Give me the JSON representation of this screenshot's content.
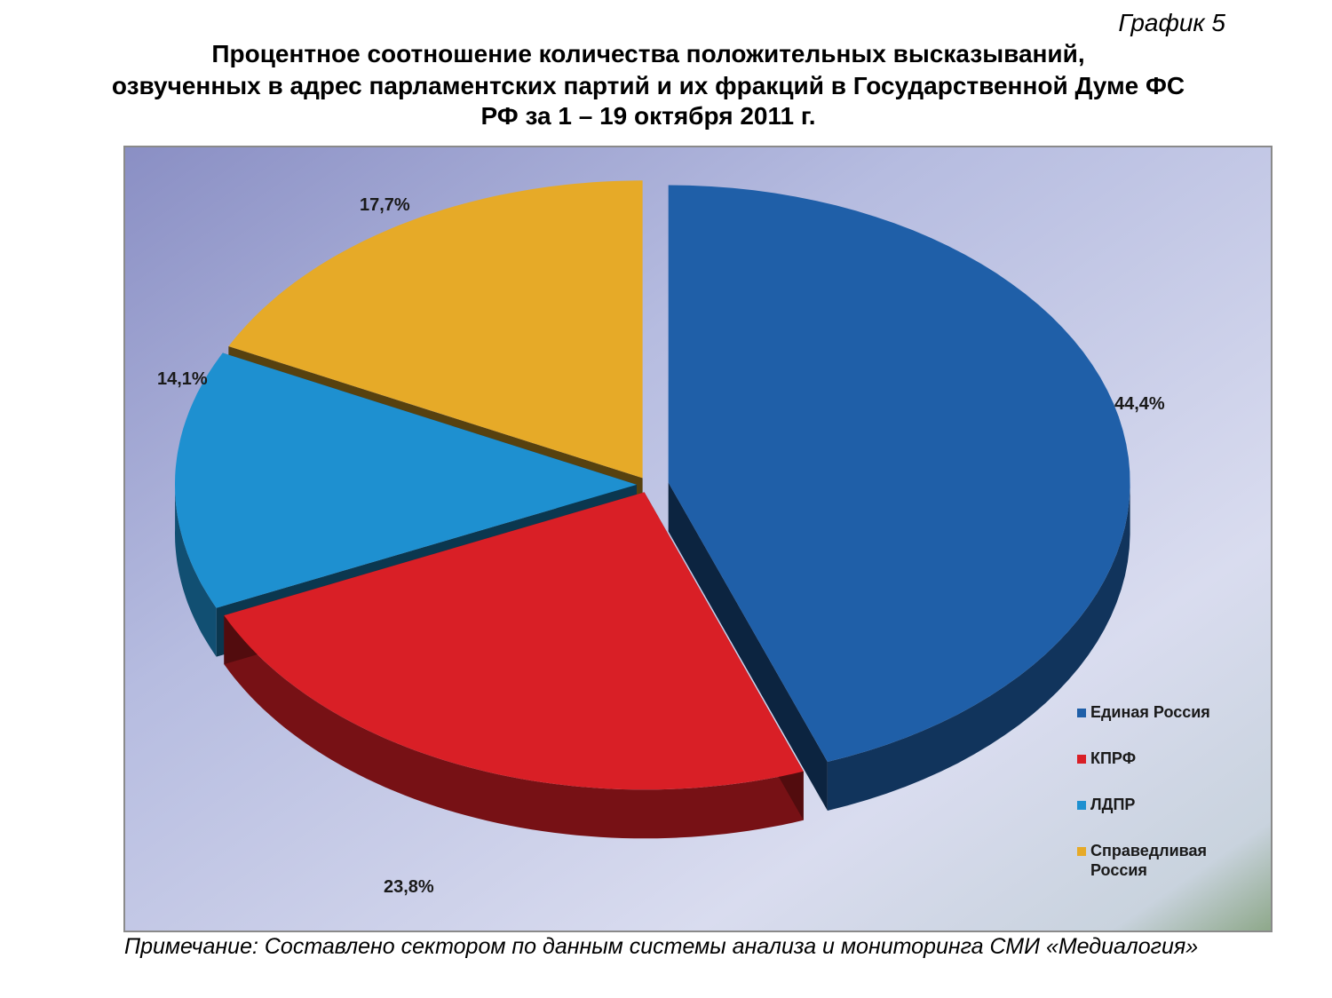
{
  "header": {
    "caption": "График 5",
    "title_line1": "Процентное соотношение количества положительных высказываний,",
    "title_line2": "озвученных в адрес парламентских партий и их фракций в Государственной Думе ФС",
    "title_line3": "РФ за 1 – 19 октября 2011 г."
  },
  "chart_data": {
    "type": "pie",
    "style": "3d-exploded",
    "categories": [
      "Единая Россия",
      "КПРФ",
      "ЛДПР",
      "Справедливая Россия"
    ],
    "values": [
      44.4,
      23.8,
      14.1,
      17.7
    ],
    "value_labels": [
      "44,4%",
      "23,8%",
      "14,1%",
      "17,7%"
    ],
    "colors": [
      "#1f5fa8",
      "#d91f26",
      "#1e90d0",
      "#e6aa28"
    ],
    "legend": {
      "position": "right",
      "entries": [
        {
          "label_line1": "Единая Россия",
          "label_line2": "",
          "color": "#1f5fa8"
        },
        {
          "label_line1": "КПРФ",
          "label_line2": "",
          "color": "#d91f26"
        },
        {
          "label_line1": "ЛДПР",
          "label_line2": "",
          "color": "#1e90d0"
        },
        {
          "label_line1": "Справедливая",
          "label_line2": "Россия",
          "color": "#e6aa28"
        }
      ]
    }
  },
  "footer": {
    "note": "Примечание: Составлено сектором по данным системы анализа и мониторинга СМИ «Медиалогия»"
  }
}
